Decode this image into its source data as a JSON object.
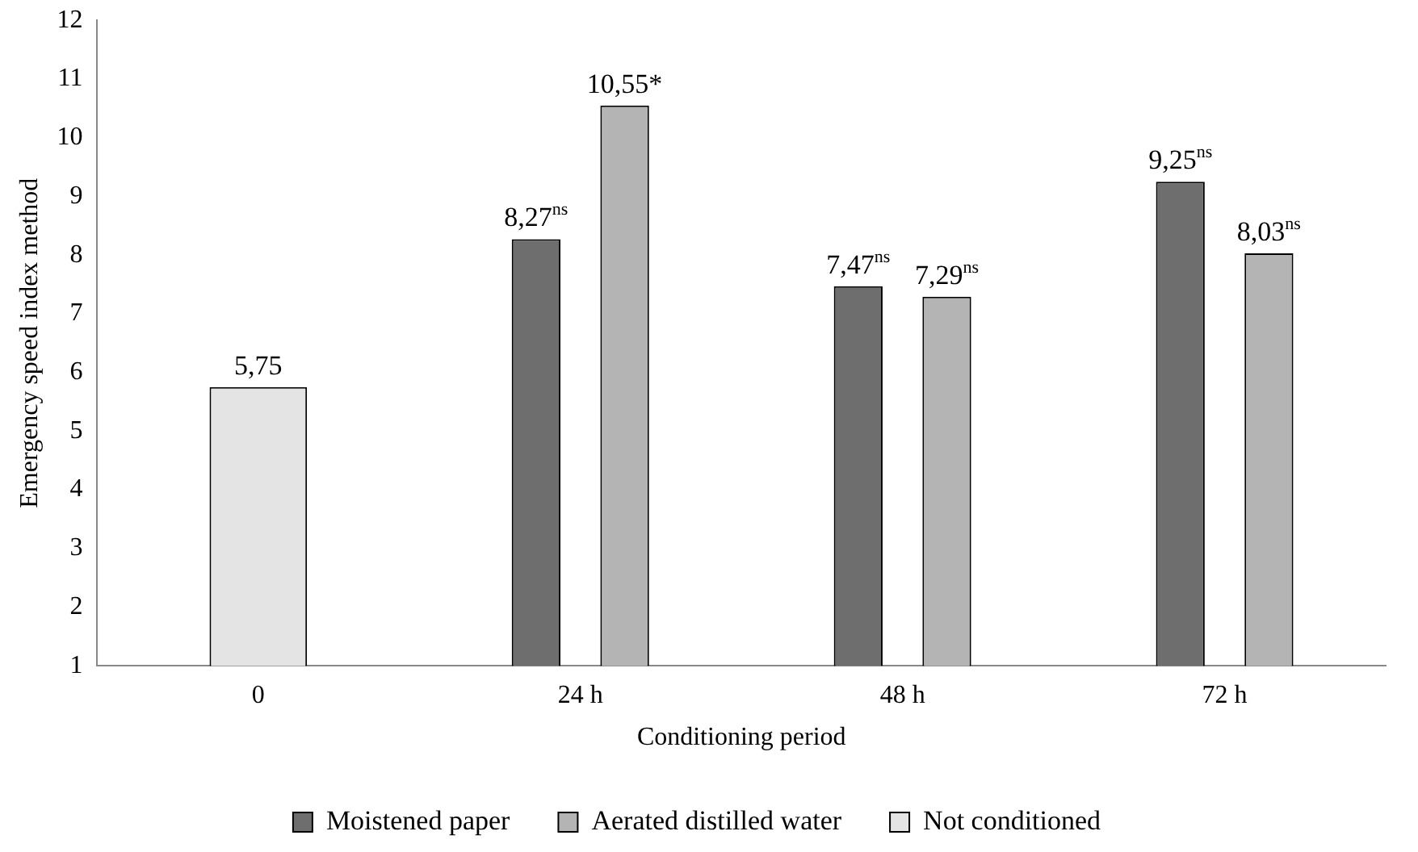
{
  "chart_data": {
    "type": "bar",
    "xlabel": "Conditioning period",
    "ylabel": "Emergency speed index method",
    "categories": [
      "0",
      "24 h",
      "48 h",
      "72 h"
    ],
    "series": [
      {
        "name": "Moistened paper",
        "color": "#6e6e6e",
        "values": [
          null,
          8.27,
          7.47,
          9.25
        ],
        "value_labels": [
          null,
          "8,27$^{ns}$",
          "7,47$^{ns}$",
          "9,25$^{ns}$"
        ]
      },
      {
        "name": "Aerated distilled water",
        "color": "#b4b4b4",
        "values": [
          null,
          10.55,
          7.29,
          8.03
        ],
        "value_labels": [
          null,
          "10,55*",
          "7,29$^{ns}$",
          "8,03$^{ns}$"
        ]
      },
      {
        "name": "Not conditioned",
        "color": "#e4e4e4",
        "values": [
          5.75,
          null,
          null,
          null
        ],
        "value_labels": [
          "5,75",
          null,
          null,
          null
        ]
      }
    ],
    "ylim": [
      1,
      12
    ],
    "yticks": [
      1,
      2,
      3,
      4,
      5,
      6,
      7,
      8,
      9,
      10,
      11,
      12
    ],
    "grid": false,
    "legend": "bottom"
  }
}
